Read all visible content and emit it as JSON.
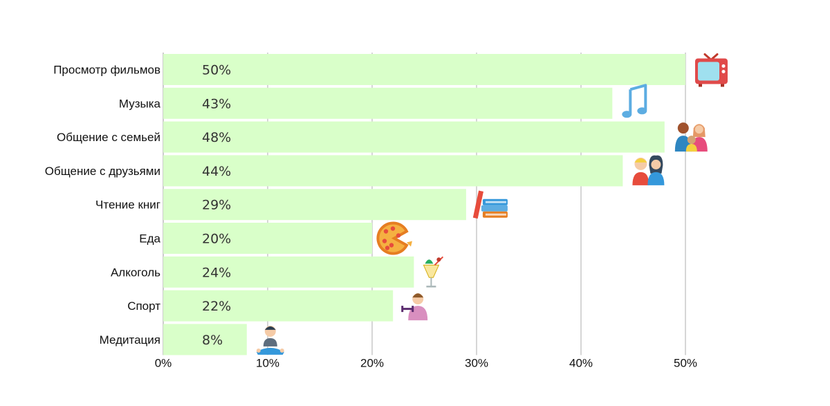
{
  "chart_data": {
    "type": "bar",
    "orientation": "horizontal",
    "title": "",
    "xlabel": "",
    "ylabel": "",
    "categories": [
      "Просмотр фильмов",
      "Музыка",
      "Общение с семьей",
      "Общение с друзьями",
      "Чтение книг",
      "Еда",
      "Алкоголь",
      "Спорт",
      "Медитация"
    ],
    "values": [
      50,
      43,
      48,
      44,
      29,
      20,
      24,
      22,
      8
    ],
    "value_labels": [
      "50%",
      "43%",
      "48%",
      "44%",
      "29%",
      "20%",
      "24%",
      "22%",
      "8%"
    ],
    "icons": [
      "tv-icon",
      "music-note-icon",
      "family-icon",
      "friends-icon",
      "books-icon",
      "pizza-icon",
      "cocktail-icon",
      "fitness-icon",
      "meditation-icon"
    ],
    "xlim": [
      0,
      50
    ],
    "xticks": [
      0,
      10,
      20,
      30,
      40,
      50
    ],
    "xtick_labels": [
      "0%",
      "10%",
      "20%",
      "30%",
      "40%",
      "50%"
    ],
    "grid": true,
    "bar_color": "#d9ffc9"
  }
}
